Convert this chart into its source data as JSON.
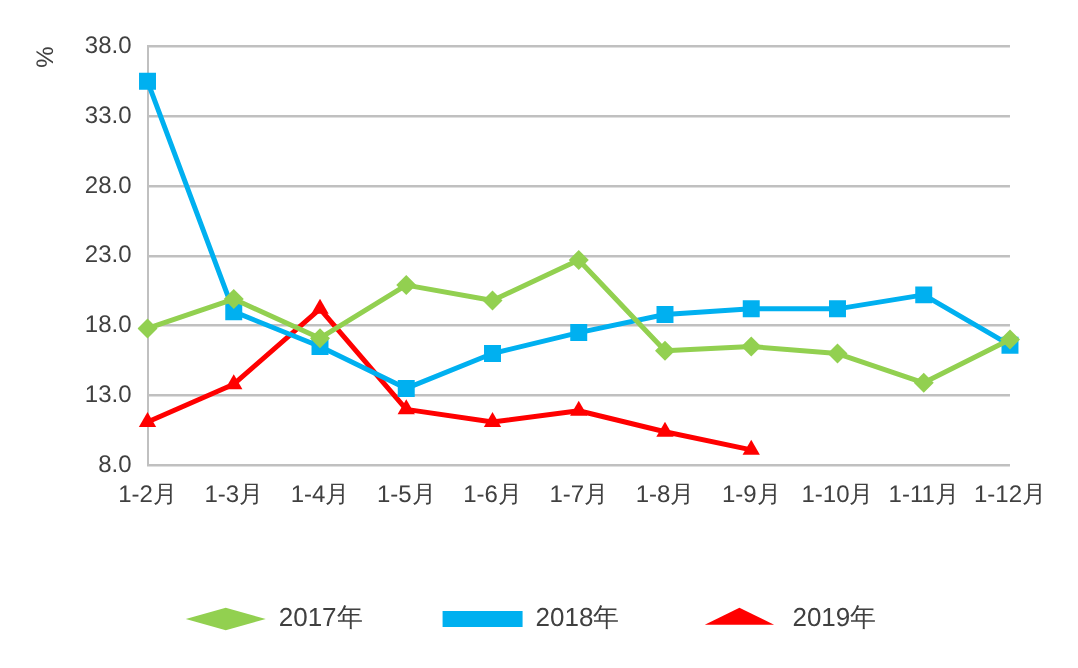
{
  "chart_data": {
    "type": "line",
    "ylabel": "%",
    "categories": [
      "1-2月",
      "1-3月",
      "1-4月",
      "1-5月",
      "1-6月",
      "1-7月",
      "1-8月",
      "1-9月",
      "1-10月",
      "1-11月",
      "1-12月"
    ],
    "series": [
      {
        "name": "2017年",
        "color": "#92d050",
        "marker": "diamond",
        "values": [
          17.8,
          19.9,
          17.1,
          20.9,
          19.8,
          22.7,
          16.2,
          16.5,
          16.0,
          13.9,
          17.0
        ]
      },
      {
        "name": "2018年",
        "color": "#00b0f0",
        "marker": "square",
        "values": [
          35.5,
          19.0,
          16.5,
          13.5,
          16.0,
          17.5,
          18.8,
          19.2,
          19.2,
          20.2,
          16.6
        ]
      },
      {
        "name": "2019年",
        "color": "#ff0000",
        "marker": "triangle",
        "values": [
          11.1,
          13.8,
          19.2,
          12.0,
          11.1,
          11.9,
          10.4,
          9.1,
          null,
          null,
          null
        ]
      }
    ],
    "ylim": [
      8,
      38
    ],
    "yticks": [
      {
        "value": 8,
        "label": "8.0"
      },
      {
        "value": 13,
        "label": "13.0"
      },
      {
        "value": 18,
        "label": "18.0"
      },
      {
        "value": 23,
        "label": "23.0"
      },
      {
        "value": 28,
        "label": "28.0"
      },
      {
        "value": 33,
        "label": "33.0"
      },
      {
        "value": 38,
        "label": "38.0"
      }
    ],
    "grid": "y",
    "legend": "bottom"
  }
}
